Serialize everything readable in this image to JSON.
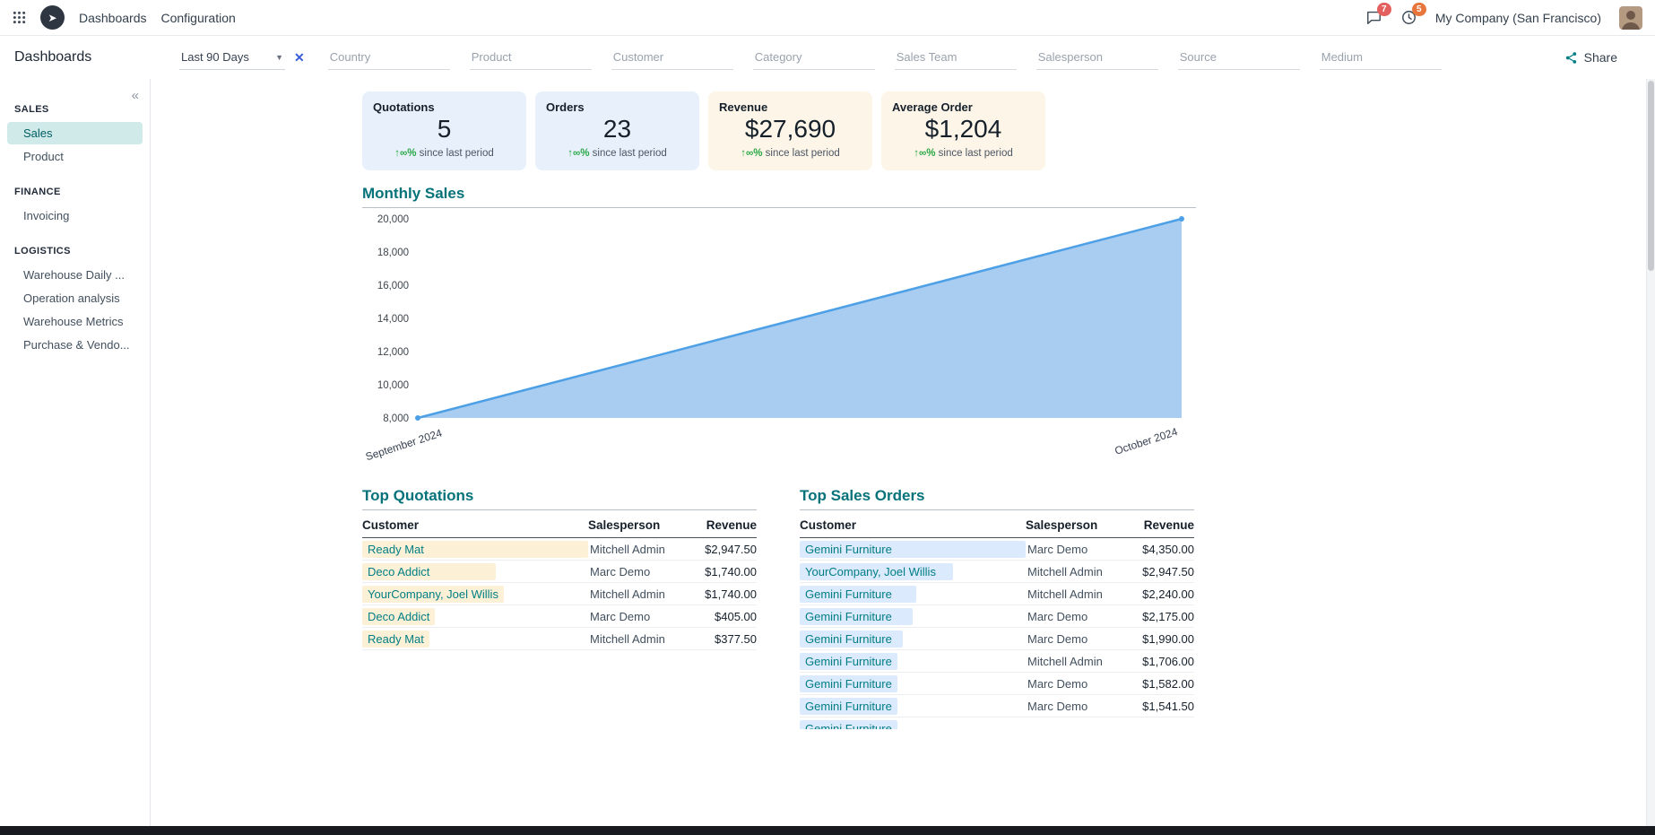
{
  "topbar": {
    "menus": [
      "Dashboards",
      "Configuration"
    ],
    "messages_badge": "7",
    "activities_badge": "5",
    "company": "My Company (San Francisco)"
  },
  "controlbar": {
    "title": "Dashboards",
    "period": "Last 90 Days",
    "filters": [
      "Country",
      "Product",
      "Customer",
      "Category",
      "Sales Team",
      "Salesperson",
      "Source",
      "Medium"
    ],
    "share_label": "Share"
  },
  "sidebar": {
    "collapse_icon": "«",
    "sections": [
      {
        "title": "SALES",
        "items": [
          {
            "label": "Sales",
            "active": true
          },
          {
            "label": "Product",
            "active": false
          }
        ]
      },
      {
        "title": "FINANCE",
        "items": [
          {
            "label": "Invoicing",
            "active": false
          }
        ]
      },
      {
        "title": "LOGISTICS",
        "items": [
          {
            "label": "Warehouse Daily ...",
            "active": false
          },
          {
            "label": "Operation analysis",
            "active": false
          },
          {
            "label": "Warehouse Metrics",
            "active": false
          },
          {
            "label": "Purchase & Vendo...",
            "active": false
          }
        ]
      }
    ]
  },
  "kpis": [
    {
      "label": "Quotations",
      "value": "5",
      "delta": "↑∞%",
      "delta_note": "since last period",
      "theme": "blue"
    },
    {
      "label": "Orders",
      "value": "23",
      "delta": "↑∞%",
      "delta_note": "since last period",
      "theme": "blue"
    },
    {
      "label": "Revenue",
      "value": "$27,690",
      "delta": "↑∞%",
      "delta_note": "since last period",
      "theme": "orange"
    },
    {
      "label": "Average Order",
      "value": "$1,204",
      "delta": "↑∞%",
      "delta_note": "since last period",
      "theme": "orange"
    }
  ],
  "chart_data": {
    "type": "area",
    "title": "Monthly Sales",
    "x": [
      "September 2024",
      "October 2024"
    ],
    "values": [
      8000,
      20000
    ],
    "ylim": [
      8000,
      20000
    ],
    "ytick_step": 2000,
    "grid": false,
    "legend": false,
    "line_color": "#4da0e6",
    "fill_color": "#a9ccf1"
  },
  "top_quotations": {
    "title": "Top Quotations",
    "columns": [
      "Customer",
      "Salesperson",
      "Revenue"
    ],
    "rows": [
      {
        "customer": "Ready Mat",
        "salesperson": "Mitchell Admin",
        "revenue": "$2,947.50",
        "amount": 2947.5
      },
      {
        "customer": "Deco Addict",
        "salesperson": "Marc Demo",
        "revenue": "$1,740.00",
        "amount": 1740
      },
      {
        "customer": "YourCompany, Joel Willis",
        "salesperson": "Mitchell Admin",
        "revenue": "$1,740.00",
        "amount": 1740
      },
      {
        "customer": "Deco Addict",
        "salesperson": "Marc Demo",
        "revenue": "$405.00",
        "amount": 405
      },
      {
        "customer": "Ready Mat",
        "salesperson": "Mitchell Admin",
        "revenue": "$377.50",
        "amount": 377.5
      }
    ]
  },
  "top_sales_orders": {
    "title": "Top Sales Orders",
    "columns": [
      "Customer",
      "Salesperson",
      "Revenue"
    ],
    "rows": [
      {
        "customer": "Gemini Furniture",
        "salesperson": "Marc Demo",
        "revenue": "$4,350.00",
        "amount": 4350
      },
      {
        "customer": "YourCompany, Joel Willis",
        "salesperson": "Mitchell Admin",
        "revenue": "$2,947.50",
        "amount": 2947.5
      },
      {
        "customer": "Gemini Furniture",
        "salesperson": "Mitchell Admin",
        "revenue": "$2,240.00",
        "amount": 2240
      },
      {
        "customer": "Gemini Furniture",
        "salesperson": "Marc Demo",
        "revenue": "$2,175.00",
        "amount": 2175
      },
      {
        "customer": "Gemini Furniture",
        "salesperson": "Marc Demo",
        "revenue": "$1,990.00",
        "amount": 1990
      },
      {
        "customer": "Gemini Furniture",
        "salesperson": "Mitchell Admin",
        "revenue": "$1,706.00",
        "amount": 1706
      },
      {
        "customer": "Gemini Furniture",
        "salesperson": "Marc Demo",
        "revenue": "$1,582.00",
        "amount": 1582
      },
      {
        "customer": "Gemini Furniture",
        "salesperson": "Marc Demo",
        "revenue": "$1,541.50",
        "amount": 1541.5
      },
      {
        "customer": "Gemini Furniture",
        "salesperson": "",
        "revenue": "",
        "amount": null
      }
    ]
  },
  "colors": {
    "accent_teal": "#017e84",
    "heading_teal": "#06727a",
    "kpi_blue_bg": "#e8f1fb",
    "kpi_orange_bg": "#fdf5e7",
    "quotation_bar": "#fcf0d6",
    "sales_order_bar": "#dbeafd",
    "delta_green": "#28a745",
    "badge_red": "#e4605e",
    "badge_orange": "#e8763c",
    "clear_filter_blue": "#3b5bdb"
  }
}
